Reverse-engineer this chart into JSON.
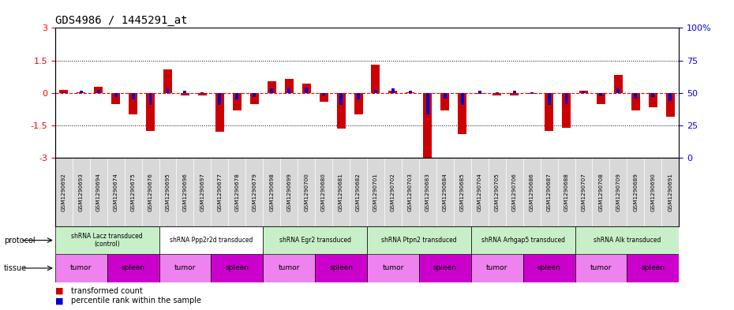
{
  "title": "GDS4986 / 1445291_at",
  "sample_ids": [
    "GSM1290692",
    "GSM1290693",
    "GSM1290694",
    "GSM1290674",
    "GSM1290675",
    "GSM1290676",
    "GSM1290695",
    "GSM1290696",
    "GSM1290697",
    "GSM1290677",
    "GSM1290678",
    "GSM1290679",
    "GSM1290698",
    "GSM1290699",
    "GSM1290700",
    "GSM1290680",
    "GSM1290681",
    "GSM1290682",
    "GSM1290701",
    "GSM1290702",
    "GSM1290703",
    "GSM1290683",
    "GSM1290684",
    "GSM1290685",
    "GSM1290704",
    "GSM1290705",
    "GSM1290706",
    "GSM1290686",
    "GSM1290687",
    "GSM1290688",
    "GSM1290707",
    "GSM1290708",
    "GSM1290709",
    "GSM1290689",
    "GSM1290690",
    "GSM1290691"
  ],
  "red_values": [
    0.15,
    0.05,
    0.3,
    -0.5,
    -1.0,
    -1.75,
    1.1,
    -0.1,
    -0.1,
    -1.8,
    -0.8,
    -0.5,
    0.55,
    0.65,
    0.45,
    -0.4,
    -1.65,
    -1.0,
    1.3,
    0.1,
    0.05,
    -3.0,
    -0.8,
    -1.9,
    -0.05,
    -0.1,
    -0.1,
    -0.05,
    -1.75,
    -1.6,
    0.1,
    -0.5,
    0.85,
    -0.8,
    -0.65,
    -1.1
  ],
  "blue_values": [
    0.05,
    0.1,
    0.15,
    -0.2,
    -0.3,
    -0.55,
    0.2,
    0.1,
    0.05,
    -0.55,
    -0.3,
    -0.2,
    0.2,
    0.2,
    0.25,
    -0.1,
    -0.55,
    -0.3,
    0.15,
    0.2,
    0.1,
    -1.0,
    -0.25,
    -0.55,
    0.1,
    0.05,
    0.1,
    0.05,
    -0.55,
    -0.5,
    0.1,
    -0.15,
    0.2,
    -0.25,
    -0.2,
    -0.35
  ],
  "protocols": [
    {
      "label": "shRNA Lacz transduced\n(control)",
      "start": 0,
      "end": 6,
      "color": "#c8f0c8"
    },
    {
      "label": "shRNA Ppp2r2d transduced",
      "start": 6,
      "end": 12,
      "color": "#ffffff"
    },
    {
      "label": "shRNA Egr2 transduced",
      "start": 12,
      "end": 18,
      "color": "#c8f0c8"
    },
    {
      "label": "shRNA Ptpn2 transduced",
      "start": 18,
      "end": 24,
      "color": "#c8f0c8"
    },
    {
      "label": "shRNA Arhgap5 transduced",
      "start": 24,
      "end": 30,
      "color": "#c8f0c8"
    },
    {
      "label": "shRNA Alk transduced",
      "start": 30,
      "end": 36,
      "color": "#c8f0c8"
    }
  ],
  "tissues": [
    {
      "label": "tumor",
      "start": 0,
      "end": 3,
      "color": "#ee82ee"
    },
    {
      "label": "spleen",
      "start": 3,
      "end": 6,
      "color": "#cc00cc"
    },
    {
      "label": "tumor",
      "start": 6,
      "end": 9,
      "color": "#ee82ee"
    },
    {
      "label": "spleen",
      "start": 9,
      "end": 12,
      "color": "#cc00cc"
    },
    {
      "label": "tumor",
      "start": 12,
      "end": 15,
      "color": "#ee82ee"
    },
    {
      "label": "spleen",
      "start": 15,
      "end": 18,
      "color": "#cc00cc"
    },
    {
      "label": "tumor",
      "start": 18,
      "end": 21,
      "color": "#ee82ee"
    },
    {
      "label": "spleen",
      "start": 21,
      "end": 24,
      "color": "#cc00cc"
    },
    {
      "label": "tumor",
      "start": 24,
      "end": 27,
      "color": "#ee82ee"
    },
    {
      "label": "spleen",
      "start": 27,
      "end": 30,
      "color": "#cc00cc"
    },
    {
      "label": "tumor",
      "start": 30,
      "end": 33,
      "color": "#ee82ee"
    },
    {
      "label": "spleen",
      "start": 33,
      "end": 36,
      "color": "#cc00cc"
    }
  ],
  "ylim": [
    -3,
    3
  ],
  "yticks_left": [
    -3,
    -1.5,
    0,
    1.5,
    3
  ],
  "yticks_right": [
    0,
    25,
    50,
    75,
    100
  ],
  "ylabel_right_labels": [
    "0",
    "25",
    "50",
    "75",
    "100%"
  ],
  "red_color": "#cc0000",
  "blue_color": "#0000cc",
  "bg_sample_ids": "#d8d8d8"
}
